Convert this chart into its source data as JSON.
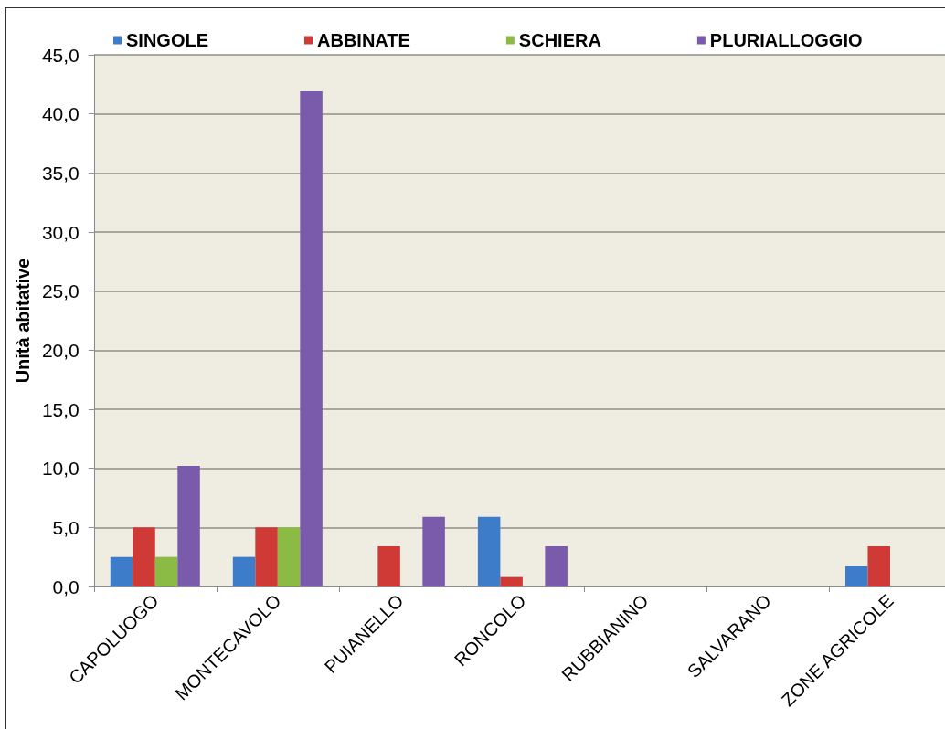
{
  "chart_data": {
    "type": "bar",
    "ylabel": "Unità abitative",
    "categories": [
      "CAPOLUOGO",
      "MONTECAVOLO",
      "PUIANELLO",
      "RONCOLO",
      "RUBBIANINO",
      "SALVARANO",
      "ZONE AGRICOLE"
    ],
    "series": [
      {
        "name": "SINGOLE",
        "color": "#3d7cc9",
        "values": [
          2.5,
          2.5,
          0,
          5.9,
          0,
          0,
          1.7
        ]
      },
      {
        "name": "ABBINATE",
        "color": "#cf3a36",
        "values": [
          5.0,
          5.0,
          3.4,
          0.8,
          0,
          0,
          3.4
        ]
      },
      {
        "name": "SCHIERA",
        "color": "#8cbb45",
        "values": [
          2.5,
          5.0,
          0,
          0,
          0,
          0,
          0
        ]
      },
      {
        "name": "PLURIALLOGGIO",
        "color": "#7a5aaa",
        "values": [
          10.2,
          41.9,
          5.9,
          3.4,
          0,
          0,
          0
        ]
      }
    ],
    "ylim": [
      0,
      45
    ],
    "yticks": [
      {
        "value": 0,
        "label": "0,0"
      },
      {
        "value": 5,
        "label": "5,0"
      },
      {
        "value": 10,
        "label": "10,0"
      },
      {
        "value": 15,
        "label": "15,0"
      },
      {
        "value": 20,
        "label": "20,0"
      },
      {
        "value": 25,
        "label": "25,0"
      },
      {
        "value": 30,
        "label": "30,0"
      },
      {
        "value": 35,
        "label": "35,0"
      },
      {
        "value": 40,
        "label": "40,0"
      },
      {
        "value": 45,
        "label": "45,0"
      }
    ],
    "grid": "y",
    "legend": "top"
  }
}
